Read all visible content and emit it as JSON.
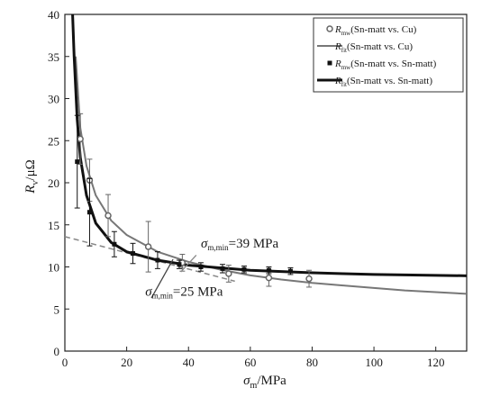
{
  "chart_data": {
    "type": "line",
    "xlabel_main": "σ",
    "xlabel_sub": "m",
    "xlabel_unit": "/MPa",
    "ylabel_main": "R",
    "ylabel_sub": "v",
    "ylabel_unit": "/μΩ",
    "xlim": [
      0,
      130
    ],
    "ylim": [
      0,
      40
    ],
    "xticks": [
      "0",
      "20",
      "40",
      "60",
      "80",
      "100",
      "120"
    ],
    "yticks": [
      "0",
      "5",
      "10",
      "15",
      "20",
      "25",
      "30",
      "35",
      "40"
    ],
    "xtick_values": [
      0,
      20,
      40,
      60,
      80,
      100,
      120
    ],
    "ytick_values": [
      0,
      5,
      10,
      15,
      20,
      25,
      30,
      35,
      40
    ],
    "series": [
      {
        "name_main": "R",
        "name_sub": "mw",
        "name_rest": "(Sn-matt vs. Cu)",
        "kind": "scatter",
        "marker": "open-circle",
        "color": "#666666",
        "points": [
          {
            "x": 5,
            "y": 25.2,
            "err": 3.0
          },
          {
            "x": 8,
            "y": 20.3,
            "err": 2.5
          },
          {
            "x": 14,
            "y": 16.1,
            "err": 2.5
          },
          {
            "x": 27,
            "y": 12.4,
            "err": 3.0
          },
          {
            "x": 38,
            "y": 10.5,
            "err": 1.0
          },
          {
            "x": 53,
            "y": 9.2,
            "err": 1.0
          },
          {
            "x": 66,
            "y": 8.7,
            "err": 1.0
          },
          {
            "x": 79,
            "y": 8.6,
            "err": 1.0
          }
        ]
      },
      {
        "name_main": "R",
        "name_sub": "fit",
        "name_rest": "(Sn-matt vs. Cu)",
        "kind": "line",
        "color": "#777777",
        "width": 2,
        "points": [
          {
            "x": 3.5,
            "y": 35.0
          },
          {
            "x": 5,
            "y": 26.5
          },
          {
            "x": 7,
            "y": 22.0
          },
          {
            "x": 10,
            "y": 18.5
          },
          {
            "x": 15,
            "y": 15.5
          },
          {
            "x": 20,
            "y": 13.8
          },
          {
            "x": 30,
            "y": 11.8
          },
          {
            "x": 40,
            "y": 10.6
          },
          {
            "x": 50,
            "y": 9.7
          },
          {
            "x": 60,
            "y": 9.0
          },
          {
            "x": 70,
            "y": 8.5
          },
          {
            "x": 80,
            "y": 8.1
          },
          {
            "x": 90,
            "y": 7.8
          },
          {
            "x": 100,
            "y": 7.5
          },
          {
            "x": 110,
            "y": 7.2
          },
          {
            "x": 120,
            "y": 7.0
          },
          {
            "x": 130,
            "y": 6.8
          }
        ]
      },
      {
        "name_main": "R",
        "name_sub": "mw",
        "name_rest": "(Sn-matt vs. Sn-matt)",
        "kind": "scatter",
        "marker": "filled-square",
        "color": "#111111",
        "points": [
          {
            "x": 4,
            "y": 22.5,
            "err": 5.5
          },
          {
            "x": 8,
            "y": 16.5,
            "err": 4.0
          },
          {
            "x": 16,
            "y": 12.7,
            "err": 1.5
          },
          {
            "x": 22,
            "y": 11.6,
            "err": 1.2
          },
          {
            "x": 30,
            "y": 10.8,
            "err": 1.0
          },
          {
            "x": 37,
            "y": 10.3,
            "err": 0.5
          },
          {
            "x": 44,
            "y": 10.0,
            "err": 0.5
          },
          {
            "x": 51,
            "y": 9.8,
            "err": 0.5
          },
          {
            "x": 58,
            "y": 9.7,
            "err": 0.4
          },
          {
            "x": 66,
            "y": 9.6,
            "err": 0.4
          },
          {
            "x": 73,
            "y": 9.5,
            "err": 0.4
          }
        ]
      },
      {
        "name_main": "R",
        "name_sub": "fit",
        "name_rest": "(Sn-matt vs. Sn-matt)",
        "kind": "line",
        "color": "#111111",
        "width": 3,
        "points": [
          {
            "x": 2.5,
            "y": 40.0
          },
          {
            "x": 3,
            "y": 35.0
          },
          {
            "x": 4,
            "y": 27.5
          },
          {
            "x": 5,
            "y": 23.0
          },
          {
            "x": 7,
            "y": 18.5
          },
          {
            "x": 10,
            "y": 15.2
          },
          {
            "x": 15,
            "y": 12.9
          },
          {
            "x": 20,
            "y": 11.8
          },
          {
            "x": 30,
            "y": 10.8
          },
          {
            "x": 40,
            "y": 10.2
          },
          {
            "x": 50,
            "y": 9.9
          },
          {
            "x": 60,
            "y": 9.6
          },
          {
            "x": 70,
            "y": 9.45
          },
          {
            "x": 80,
            "y": 9.3
          },
          {
            "x": 90,
            "y": 9.2
          },
          {
            "x": 100,
            "y": 9.1
          },
          {
            "x": 110,
            "y": 9.05
          },
          {
            "x": 120,
            "y": 9.0
          },
          {
            "x": 130,
            "y": 8.95
          }
        ]
      }
    ],
    "reference_lines": [
      {
        "from": {
          "x": 0,
          "y": 13.6
        },
        "to": {
          "x": 55,
          "y": 8.3
        },
        "color": "#888888",
        "dash": true
      }
    ],
    "annotations": [
      {
        "text_main": "σ",
        "text_sub": "m,min",
        "text_rest": "=39 MPa",
        "anchor": {
          "x": 44,
          "y": 12.3
        },
        "pointer_from": {
          "x": 42.5,
          "y": 11.4
        },
        "pointer_to": {
          "x": 37.5,
          "y": 9.4
        }
      },
      {
        "text_main": "σ",
        "text_sub": "m,min",
        "text_rest": "=25 MPa",
        "anchor": {
          "x": 26,
          "y": 6.6
        },
        "pointer_from": {
          "x": 28,
          "y": 6.3
        },
        "pointer_to": {
          "x": 35,
          "y": 10.9
        }
      }
    ],
    "legend_position": "top-right",
    "grid": false
  }
}
